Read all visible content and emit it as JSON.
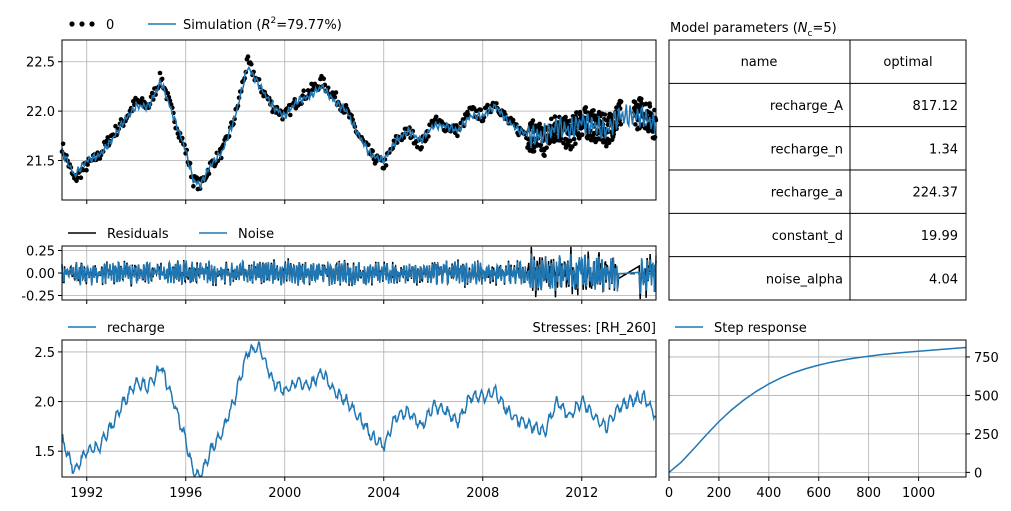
{
  "chart_data": [
    {
      "type": "scatter+line",
      "panel": "observations-simulation",
      "legend": [
        {
          "name": "0",
          "style": "dots",
          "color": "#000000"
        },
        {
          "name_parts": [
            "Simulation (",
            "R",
            "2",
            "=79.77%)"
          ],
          "style": "line",
          "color": "#1f77b4"
        }
      ],
      "xlim": [
        1991.0,
        2015.0
      ],
      "ylim": [
        21.1,
        22.72
      ],
      "yticks": [
        21.5,
        22.0,
        22.5
      ],
      "ytick_labels": [
        "21.5",
        "22.0",
        "22.5"
      ],
      "grid": true,
      "series": [
        {
          "role": "observed",
          "x": [
            1991.0,
            1991.5,
            1992.0,
            1992.5,
            1993.0,
            1993.5,
            1994.0,
            1994.5,
            1995.0,
            1995.5,
            1996.0,
            1996.3,
            1996.6,
            1997.0,
            1997.5,
            1998.0,
            1998.5,
            1999.0,
            1999.5,
            2000.0,
            2000.5,
            2001.0,
            2001.5,
            2002.0,
            2002.5,
            2003.0,
            2003.5,
            2004.0,
            2004.5,
            2005.0,
            2005.5,
            2006.0,
            2006.5,
            2007.0,
            2007.5,
            2008.0,
            2008.5,
            2009.0,
            2009.5,
            2010.0,
            2010.5,
            2011.0,
            2011.5,
            2012.0,
            2012.5,
            2013.0,
            2013.5,
            2014.0,
            2014.5,
            2015.0
          ],
          "y": [
            21.65,
            21.3,
            21.45,
            21.55,
            21.75,
            21.9,
            22.1,
            22.05,
            22.35,
            21.95,
            21.6,
            21.3,
            21.25,
            21.45,
            21.6,
            21.95,
            22.5,
            22.25,
            22.05,
            21.95,
            22.1,
            22.2,
            22.3,
            22.15,
            22.0,
            21.75,
            21.55,
            21.45,
            21.7,
            21.8,
            21.65,
            21.9,
            21.85,
            21.8,
            22.0,
            21.95,
            22.1,
            21.9,
            21.8,
            21.75,
            21.7,
            21.85,
            21.75,
            21.9,
            21.85,
            21.8,
            21.95,
            21.95,
            22.0,
            21.85
          ]
        },
        {
          "role": "simulated",
          "x": [
            1991.0,
            1991.5,
            1992.0,
            1992.5,
            1993.0,
            1993.5,
            1994.0,
            1994.5,
            1995.0,
            1995.5,
            1996.0,
            1996.3,
            1996.6,
            1997.0,
            1997.5,
            1998.0,
            1998.5,
            1999.0,
            1999.5,
            2000.0,
            2000.5,
            2001.0,
            2001.5,
            2002.0,
            2002.5,
            2003.0,
            2003.5,
            2004.0,
            2004.5,
            2005.0,
            2005.5,
            2006.0,
            2006.5,
            2007.0,
            2007.5,
            2008.0,
            2008.5,
            2009.0,
            2009.5,
            2010.0,
            2010.5,
            2011.0,
            2011.5,
            2012.0,
            2012.5,
            2013.0,
            2013.5,
            2014.0,
            2014.5,
            2015.0
          ],
          "y": [
            21.6,
            21.35,
            21.5,
            21.55,
            21.7,
            21.9,
            22.05,
            22.05,
            22.3,
            21.95,
            21.6,
            21.3,
            21.25,
            21.45,
            21.6,
            21.95,
            22.45,
            22.25,
            22.05,
            21.95,
            22.1,
            22.15,
            22.25,
            22.1,
            22.0,
            21.75,
            21.55,
            21.5,
            21.7,
            21.8,
            21.7,
            21.85,
            21.85,
            21.8,
            21.95,
            21.95,
            22.05,
            21.9,
            21.8,
            21.75,
            21.75,
            21.85,
            21.8,
            21.9,
            21.85,
            21.8,
            21.95,
            21.95,
            21.95,
            21.85
          ]
        }
      ]
    },
    {
      "type": "line",
      "panel": "residuals-noise",
      "legend": [
        {
          "name": "Residuals",
          "color": "#000000"
        },
        {
          "name": "Noise",
          "color": "#1f77b4"
        }
      ],
      "xlim": [
        1991.0,
        2015.0
      ],
      "ylim": [
        -0.3,
        0.3
      ],
      "yticks": [
        -0.25,
        0.0,
        0.25
      ],
      "ytick_labels": [
        "-0.25",
        "0.00",
        "0.25"
      ],
      "grid": true,
      "zero_line": "dashed",
      "amplitude_periods": [
        {
          "from": 1991.0,
          "to": 2009.8,
          "amplitude": 0.13
        },
        {
          "from": 2009.8,
          "to": 2013.5,
          "amplitude": 0.2
        },
        {
          "from": 2014.3,
          "to": 2015.0,
          "amplitude": 0.22
        }
      ]
    },
    {
      "type": "line",
      "panel": "recharge",
      "title": "Stresses: [RH_260]",
      "legend": [
        {
          "name": "recharge",
          "color": "#1f77b4"
        }
      ],
      "xlim": [
        1991.0,
        2015.0
      ],
      "ylim": [
        1.24,
        2.62
      ],
      "xticks": [
        1992,
        1996,
        2000,
        2004,
        2008,
        2012
      ],
      "xtick_labels": [
        "1992",
        "1996",
        "2000",
        "2004",
        "2008",
        "2012"
      ],
      "yticks": [
        1.5,
        2.0,
        2.5
      ],
      "ytick_labels": [
        "1.5",
        "2.0",
        "2.5"
      ],
      "grid": true,
      "x": [
        1991.0,
        1991.5,
        1992.0,
        1992.5,
        1993.0,
        1993.5,
        1994.0,
        1994.5,
        1995.0,
        1995.5,
        1996.0,
        1996.3,
        1996.6,
        1997.0,
        1997.5,
        1998.0,
        1998.5,
        1999.0,
        1999.5,
        2000.0,
        2000.5,
        2001.0,
        2001.5,
        2002.0,
        2002.5,
        2003.0,
        2003.5,
        2004.0,
        2004.5,
        2005.0,
        2005.5,
        2006.0,
        2006.5,
        2007.0,
        2007.5,
        2008.0,
        2008.5,
        2009.0,
        2009.5,
        2010.0,
        2010.5,
        2011.0,
        2011.5,
        2012.0,
        2012.5,
        2013.0,
        2013.5,
        2014.0,
        2014.5,
        2015.0
      ],
      "y": [
        1.62,
        1.3,
        1.5,
        1.55,
        1.75,
        2.0,
        2.2,
        2.15,
        2.35,
        2.0,
        1.6,
        1.3,
        1.25,
        1.5,
        1.7,
        2.05,
        2.5,
        2.55,
        2.2,
        2.1,
        2.2,
        2.15,
        2.3,
        2.1,
        2.0,
        1.85,
        1.65,
        1.55,
        1.85,
        1.9,
        1.75,
        1.95,
        1.9,
        1.8,
        2.05,
        2.05,
        2.1,
        1.9,
        1.8,
        1.75,
        1.7,
        2.0,
        1.85,
        2.0,
        1.85,
        1.75,
        1.95,
        2.0,
        2.05,
        1.85
      ]
    },
    {
      "type": "line",
      "panel": "step-response",
      "legend": [
        {
          "name": "Step response",
          "color": "#1f77b4"
        }
      ],
      "xlim": [
        0,
        1190
      ],
      "ylim": [
        -30,
        860
      ],
      "xticks": [
        0,
        200,
        400,
        600,
        800,
        1000
      ],
      "xtick_labels": [
        "0",
        "200",
        "400",
        "600",
        "800",
        "1000"
      ],
      "yticks": [
        0,
        250,
        500,
        750
      ],
      "ytick_labels": [
        "0",
        "250",
        "500",
        "750"
      ],
      "grid": true,
      "x": [
        0,
        50,
        100,
        150,
        200,
        250,
        300,
        350,
        400,
        450,
        500,
        550,
        600,
        650,
        700,
        750,
        800,
        850,
        900,
        950,
        1000,
        1050,
        1100,
        1150,
        1190
      ],
      "y": [
        0,
        68,
        155,
        245,
        330,
        405,
        470,
        527,
        575,
        615,
        648,
        675,
        697,
        716,
        731,
        744,
        755,
        765,
        773,
        781,
        787,
        794,
        800,
        806,
        811
      ]
    }
  ],
  "parameters_table": {
    "title_parts": [
      "Model parameters (",
      "N",
      "c",
      "=5)"
    ],
    "headers": [
      "name",
      "optimal"
    ],
    "rows": [
      [
        "recharge_A",
        "817.12"
      ],
      [
        "recharge_n",
        "1.34"
      ],
      [
        "recharge_a",
        "224.37"
      ],
      [
        "constant_d",
        "19.99"
      ],
      [
        "noise_alpha",
        "4.04"
      ]
    ]
  },
  "colors": {
    "series_blue": "#1f77b4",
    "observed_black": "#000000",
    "grid": "#b0b0b0"
  }
}
